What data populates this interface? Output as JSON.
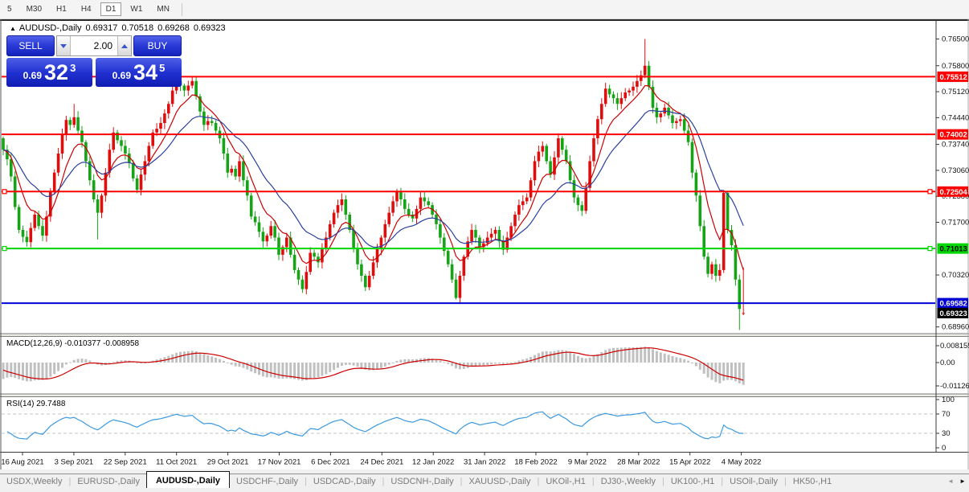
{
  "toolbar": {
    "timeframes": [
      "5",
      "M30",
      "H1",
      "H4",
      "D1",
      "W1",
      "MN"
    ],
    "active": "D1"
  },
  "header": {
    "symbol": "AUDUSD-,Daily",
    "open": "0.69317",
    "high": "0.70518",
    "low": "0.69268",
    "close": "0.69323"
  },
  "icons": {
    "header_arrow": "▲",
    "tab_scroll_left": "◄",
    "tab_scroll_right": "►"
  },
  "trade_panel": {
    "sell_label": "SELL",
    "buy_label": "BUY",
    "volume": "2.00",
    "sell_price": {
      "big_figure": "0.69",
      "pips": "32",
      "point": "3"
    },
    "buy_price": {
      "big_figure": "0.69",
      "pips": "34",
      "point": "5"
    }
  },
  "chart_data": {
    "type": "candlestick",
    "symbol": "AUDUSD",
    "timeframe": "Daily",
    "title": "AUDUSD-,Daily 0.69317 0.70518 0.69268 0.69323",
    "price_axis_ticks": [
      "0.76500",
      "0.75800",
      "0.75120",
      "0.74440",
      "0.73740",
      "0.73060",
      "0.72380",
      "0.71700",
      "0.70320",
      "0.68960"
    ],
    "x_axis_dates": [
      "16 Aug 2021",
      "3 Sep 2021",
      "22 Sep 2021",
      "11 Oct 2021",
      "29 Oct 2021",
      "17 Nov 2021",
      "6 Dec 2021",
      "24 Dec 2021",
      "12 Jan 2022",
      "31 Jan 2022",
      "18 Feb 2022",
      "9 Mar 2022",
      "28 Mar 2022",
      "15 Apr 2022",
      "4 May 2022"
    ],
    "first_open": 0.739,
    "closes": [
      0.736,
      0.7335,
      0.729,
      0.721,
      0.715,
      0.7132,
      0.7118,
      0.7155,
      0.719,
      0.716,
      0.7135,
      0.7185,
      0.725,
      0.73,
      0.735,
      0.74,
      0.7438,
      0.7425,
      0.7445,
      0.741,
      0.738,
      0.733,
      0.728,
      0.723,
      0.7195,
      0.724,
      0.73,
      0.736,
      0.7405,
      0.7385,
      0.737,
      0.735,
      0.7325,
      0.7285,
      0.7255,
      0.7295,
      0.733,
      0.737,
      0.7405,
      0.7415,
      0.743,
      0.7455,
      0.748,
      0.7515,
      0.754,
      0.7528,
      0.7515,
      0.7528,
      0.754,
      0.75,
      0.746,
      0.7425,
      0.7435,
      0.743,
      0.741,
      0.739,
      0.735,
      0.73,
      0.731,
      0.729,
      0.733,
      0.728,
      0.724,
      0.7185,
      0.717,
      0.7145,
      0.712,
      0.7135,
      0.716,
      0.713,
      0.7085,
      0.7105,
      0.713,
      0.7085,
      0.7045,
      0.702,
      0.6995,
      0.704,
      0.709,
      0.708,
      0.7065,
      0.71,
      0.713,
      0.7165,
      0.7195,
      0.7215,
      0.723,
      0.719,
      0.715,
      0.71,
      0.706,
      0.703,
      0.7,
      0.703,
      0.7065,
      0.71,
      0.713,
      0.7165,
      0.7195,
      0.7225,
      0.725,
      0.723,
      0.7205,
      0.719,
      0.718,
      0.7205,
      0.7235,
      0.7225,
      0.7215,
      0.719,
      0.7165,
      0.713,
      0.7095,
      0.706,
      0.702,
      0.6972,
      0.703,
      0.708,
      0.712,
      0.715,
      0.713,
      0.7105,
      0.7115,
      0.713,
      0.714,
      0.715,
      0.712,
      0.7098,
      0.713,
      0.716,
      0.719,
      0.7215,
      0.7225,
      0.7235,
      0.728,
      0.733,
      0.7355,
      0.737,
      0.733,
      0.7295,
      0.734,
      0.739,
      0.736,
      0.733,
      0.728,
      0.7235,
      0.7215,
      0.72,
      0.726,
      0.733,
      0.739,
      0.744,
      0.748,
      0.752,
      0.7505,
      0.7495,
      0.748,
      0.7495,
      0.751,
      0.7515,
      0.7525,
      0.754,
      0.7555,
      0.758,
      0.7525,
      0.747,
      0.7445,
      0.7455,
      0.747,
      0.745,
      0.743,
      0.7435,
      0.744,
      0.741,
      0.738,
      0.73,
      0.724,
      0.716,
      0.708,
      0.7035,
      0.706,
      0.703,
      0.7045,
      0.7247,
      0.715,
      0.711,
      0.702,
      0.6943,
      0.69323
    ],
    "wick_overrides": {
      "6": [
        null,
        0.7106
      ],
      "18": [
        0.748,
        null
      ],
      "24": [
        null,
        0.7125
      ],
      "44": [
        0.7558,
        null
      ],
      "48": [
        0.7552,
        null
      ],
      "76": [
        null,
        0.6985
      ],
      "92": [
        null,
        0.699
      ],
      "115": [
        null,
        0.6968
      ],
      "163": [
        0.765,
        null
      ],
      "183": [
        0.7253,
        null
      ],
      "187": [
        null,
        0.6888
      ],
      "188": [
        0.70518,
        0.69268
      ]
    },
    "last_candle": {
      "open": 0.69317,
      "high": 0.70518,
      "low": 0.69268,
      "close": 0.69323
    },
    "levels": [
      {
        "label": "0.75512",
        "price": 0.75512,
        "color": "#fe0000",
        "text_color": "#ffffff",
        "handles": false
      },
      {
        "label": "0.74002",
        "price": 0.74002,
        "color": "#fe0000",
        "text_color": "#ffffff",
        "handles": false
      },
      {
        "label": "0.72504",
        "price": 0.72504,
        "color": "#fe0000",
        "text_color": "#ffffff",
        "handles": true
      },
      {
        "label": "0.71013",
        "price": 0.71013,
        "color": "#00d600",
        "text_color": "#000000",
        "handles": true
      },
      {
        "label": "0.69582",
        "price": 0.69582,
        "color": "#0000d6",
        "text_color": "#ffffff",
        "handles": false
      }
    ],
    "current_price": {
      "label": "0.69323",
      "price": 0.69323,
      "badge_color": "#000000",
      "text_color": "#ffffff"
    },
    "moving_averages": [
      {
        "name": "fast-ma",
        "color": "#cc0000",
        "period": 8
      },
      {
        "name": "slow-ma",
        "color": "#2b3f9e",
        "period": 20
      }
    ],
    "indicators": {
      "macd": {
        "label": "MACD(12,26,9) -0.010377 -0.008958",
        "main_value": "-0.010377",
        "signal_value": "-0.008958",
        "axis_ticks": [
          "0.008155",
          "0.00",
          "-0.01126"
        ],
        "fast": 12,
        "slow": 26,
        "signal": 9,
        "histogram_color": "#c0c0c0",
        "signal_color": "#cc0000"
      },
      "rsi": {
        "label": "RSI(14) 29.7488",
        "value": "29.7488",
        "period": 14,
        "axis_ticks": [
          "100",
          "70",
          "30",
          "0"
        ],
        "overbought": 70,
        "oversold": 30,
        "line_color": "#3b99e0"
      }
    },
    "candle_colors": {
      "bull": "#e00d0d",
      "bear": "#16a416"
    }
  },
  "tabs": {
    "items": [
      "USDX,Weekly",
      "EURUSD-,Daily",
      "AUDUSD-,Daily",
      "USDCHF-,Daily",
      "USDCAD-,Daily",
      "USDCNH-,Daily",
      "XAUUSD-,Daily",
      "UKOil-,H1",
      "DJ30-,Weekly",
      "UK100-,H1",
      "USOil-,Daily",
      "HK50-,H1"
    ],
    "active": "AUDUSD-,Daily"
  }
}
